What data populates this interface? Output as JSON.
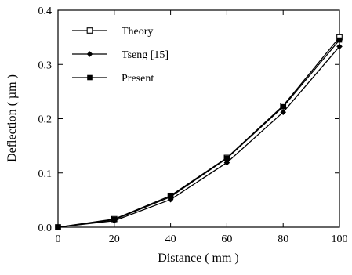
{
  "chart_data": {
    "type": "line",
    "xlabel": "Distance ( mm )",
    "ylabel": "Deflection ( µm )",
    "xlim": [
      0,
      100
    ],
    "ylim": [
      0,
      0.4
    ],
    "x_ticks": [
      "0",
      "20",
      "40",
      "60",
      "80",
      "100"
    ],
    "y_ticks": [
      "0.0",
      "0.1",
      "0.2",
      "0.3",
      "0.4"
    ],
    "grid": false,
    "legend_position": "top-left",
    "x": [
      0,
      20,
      40,
      60,
      80,
      100
    ],
    "series": [
      {
        "name": "Theory",
        "marker": "open-square",
        "values": [
          0,
          0.015,
          0.058,
          0.128,
          0.224,
          0.35
        ]
      },
      {
        "name": "Tseng [15]",
        "marker": "filled-diamond",
        "values": [
          0,
          0.012,
          0.051,
          0.119,
          0.212,
          0.333
        ]
      },
      {
        "name": "Present",
        "marker": "filled-square",
        "values": [
          0,
          0.014,
          0.056,
          0.127,
          0.222,
          0.345
        ]
      }
    ]
  }
}
